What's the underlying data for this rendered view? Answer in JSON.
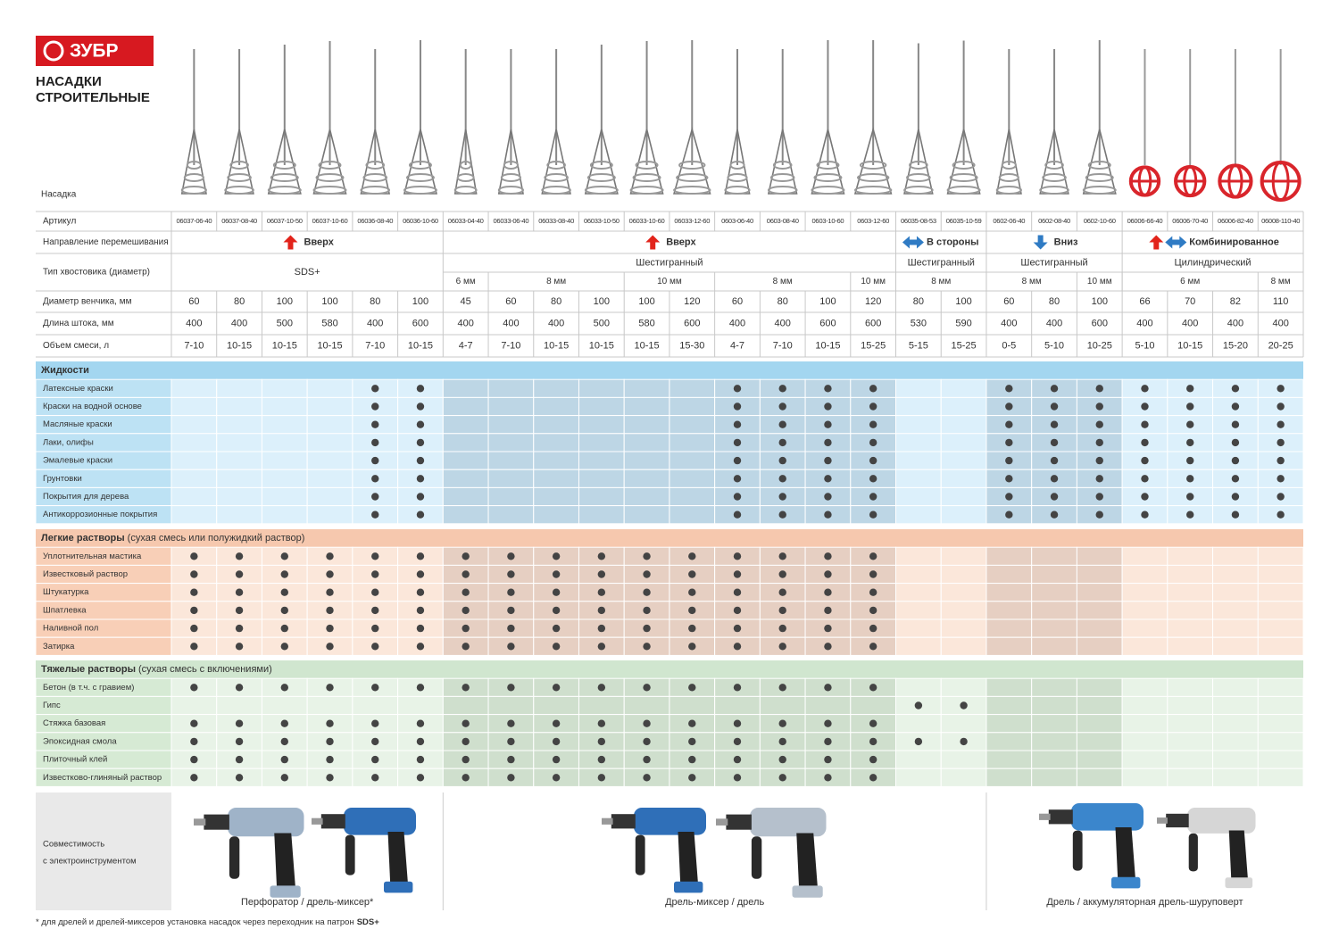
{
  "logo": "ЗУБР",
  "title": [
    "НАСАДКИ",
    "СТРОИТЕЛЬНЫЕ"
  ],
  "nozzle_label": "Насадка",
  "row_labels": {
    "article": "Артикул",
    "direction": "Направление перемешивания",
    "shank": "Тип хвостовика (диаметр)",
    "diameter": "Диаметр венчика, мм",
    "length": "Длина штока, мм",
    "volume": "Объем смеси, л"
  },
  "groups": [
    {
      "direction": "Вверх",
      "arrows": [
        "up"
      ],
      "shank": "SDS+",
      "columns": [
        {
          "article": "06037-06-40",
          "diameter": 60,
          "length": 400,
          "volume": "7-10"
        },
        {
          "article": "06037-08-40",
          "diameter": 80,
          "length": 400,
          "volume": "10-15"
        },
        {
          "article": "06037-10-50",
          "diameter": 100,
          "length": 500,
          "volume": "10-15"
        },
        {
          "article": "06037-10-60",
          "diameter": 100,
          "length": 580,
          "volume": "10-15"
        },
        {
          "article": "06036-08-40",
          "diameter": 80,
          "length": 400,
          "volume": "7-10"
        },
        {
          "article": "06036-10-60",
          "diameter": 100,
          "length": 600,
          "volume": "10-15"
        }
      ]
    },
    {
      "direction": "Вверх",
      "arrows": [
        "up"
      ],
      "shank": "Шестигранный",
      "sizes": [
        {
          "label": "6 мм",
          "columns": [
            {
              "article": "06033-04-40",
              "diameter": 45,
              "length": 400,
              "volume": "4-7"
            }
          ]
        },
        {
          "label": "8 мм",
          "columns": [
            {
              "article": "06033-06-40",
              "diameter": 60,
              "length": 400,
              "volume": "7-10"
            },
            {
              "article": "06033-08-40",
              "diameter": 80,
              "length": 400,
              "volume": "10-15"
            },
            {
              "article": "06033-10-50",
              "diameter": 100,
              "length": 500,
              "volume": "10-15"
            }
          ]
        },
        {
          "label": "10 мм",
          "columns": [
            {
              "article": "06033-10-60",
              "diameter": 100,
              "length": 580,
              "volume": "10-15"
            },
            {
              "article": "06033-12-60",
              "diameter": 120,
              "length": 600,
              "volume": "15-30"
            }
          ]
        },
        {
          "label": "8 мм",
          "columns": [
            {
              "article": "0603-06-40",
              "diameter": 60,
              "length": 400,
              "volume": "4-7"
            },
            {
              "article": "0603-08-40",
              "diameter": 80,
              "length": 400,
              "volume": "7-10"
            },
            {
              "article": "0603-10-60",
              "diameter": 100,
              "length": 600,
              "volume": "10-15"
            }
          ]
        },
        {
          "label": "10 мм",
          "columns": [
            {
              "article": "0603-12-60",
              "diameter": 120,
              "length": 600,
              "volume": "15-25"
            }
          ]
        }
      ]
    },
    {
      "direction": "В стороны",
      "arrows": [
        "sideways"
      ],
      "shank": "Шестигранный",
      "sizes": [
        {
          "label": "8 мм",
          "columns": [
            {
              "article": "06035-08-53",
              "diameter": 80,
              "length": 530,
              "volume": "5-15"
            },
            {
              "article": "06035-10-59",
              "diameter": 100,
              "length": 590,
              "volume": "15-25"
            }
          ]
        }
      ]
    },
    {
      "direction": "Вниз",
      "arrows": [
        "down"
      ],
      "shank": "Шестигранный",
      "sizes": [
        {
          "label": "8 мм",
          "columns": [
            {
              "article": "0602-06-40",
              "diameter": 60,
              "length": 400,
              "volume": "0-5"
            },
            {
              "article": "0602-08-40",
              "diameter": 80,
              "length": 400,
              "volume": "5-10"
            }
          ]
        },
        {
          "label": "10 мм",
          "columns": [
            {
              "article": "0602-10-60",
              "diameter": 100,
              "length": 600,
              "volume": "10-25"
            }
          ]
        }
      ]
    },
    {
      "direction": "Комбинированное",
      "arrows": [
        "up",
        "sideways"
      ],
      "shank": "Цилиндрический",
      "sizes": [
        {
          "label": "6 мм",
          "columns": [
            {
              "article": "06006-66-40",
              "diameter": 66,
              "length": 400,
              "volume": "5-10"
            },
            {
              "article": "06006-70-40",
              "diameter": 70,
              "length": 400,
              "volume": "10-15"
            },
            {
              "article": "06006-82-40",
              "diameter": 82,
              "length": 400,
              "volume": "15-20"
            }
          ]
        },
        {
          "label": "8 мм",
          "columns": [
            {
              "article": "06008-110-40",
              "diameter": 110,
              "length": 400,
              "volume": "20-25"
            }
          ]
        }
      ]
    }
  ],
  "sections": [
    {
      "title": "Жидкости",
      "colors": {
        "header": "#a3d6f0",
        "light": "#dcf0fb",
        "dark": "#bdd6e5",
        "label": "#bde2f4"
      },
      "rows": [
        {
          "label": "Латексные краски",
          "dots": [
            false,
            false,
            false,
            false,
            true,
            true,
            false,
            false,
            false,
            false,
            false,
            false,
            true,
            true,
            true,
            true,
            false,
            false,
            true,
            true,
            true,
            true,
            true,
            true,
            true
          ]
        },
        {
          "label": "Краски на водной основе",
          "dots": [
            false,
            false,
            false,
            false,
            true,
            true,
            false,
            false,
            false,
            false,
            false,
            false,
            true,
            true,
            true,
            true,
            false,
            false,
            true,
            true,
            true,
            true,
            true,
            true,
            true
          ]
        },
        {
          "label": "Масляные краски",
          "dots": [
            false,
            false,
            false,
            false,
            true,
            true,
            false,
            false,
            false,
            false,
            false,
            false,
            true,
            true,
            true,
            true,
            false,
            false,
            true,
            true,
            true,
            true,
            true,
            true,
            true
          ]
        },
        {
          "label": "Лаки, олифы",
          "dots": [
            false,
            false,
            false,
            false,
            true,
            true,
            false,
            false,
            false,
            false,
            false,
            false,
            true,
            true,
            true,
            true,
            false,
            false,
            true,
            true,
            true,
            true,
            true,
            true,
            true
          ]
        },
        {
          "label": "Эмалевые краски",
          "dots": [
            false,
            false,
            false,
            false,
            true,
            true,
            false,
            false,
            false,
            false,
            false,
            false,
            true,
            true,
            true,
            true,
            false,
            false,
            true,
            true,
            true,
            true,
            true,
            true,
            true
          ]
        },
        {
          "label": "Грунтовки",
          "dots": [
            false,
            false,
            false,
            false,
            true,
            true,
            false,
            false,
            false,
            false,
            false,
            false,
            true,
            true,
            true,
            true,
            false,
            false,
            true,
            true,
            true,
            true,
            true,
            true,
            true
          ]
        },
        {
          "label": "Покрытия для дерева",
          "dots": [
            false,
            false,
            false,
            false,
            true,
            true,
            false,
            false,
            false,
            false,
            false,
            false,
            true,
            true,
            true,
            true,
            false,
            false,
            true,
            true,
            true,
            true,
            true,
            true,
            true
          ]
        },
        {
          "label": "Антикоррозионные покрытия",
          "dots": [
            false,
            false,
            false,
            false,
            true,
            true,
            false,
            false,
            false,
            false,
            false,
            false,
            true,
            true,
            true,
            true,
            false,
            false,
            true,
            true,
            true,
            true,
            true,
            true,
            true
          ]
        }
      ]
    },
    {
      "title": "Легкие растворы",
      "subtitle": "(сухая смесь или полужидкий раствор)",
      "colors": {
        "header": "#f6c8ae",
        "light": "#fbe7da",
        "dark": "#e6cfc2",
        "label": "#f8cfb7"
      },
      "rows": [
        {
          "label": "Уплотнительная мастика",
          "dots": [
            true,
            true,
            true,
            true,
            true,
            true,
            true,
            true,
            true,
            true,
            true,
            true,
            true,
            true,
            true,
            true,
            false,
            false,
            false,
            false,
            false,
            false,
            false,
            false,
            false
          ]
        },
        {
          "label": "Известковый раствор",
          "dots": [
            true,
            true,
            true,
            true,
            true,
            true,
            true,
            true,
            true,
            true,
            true,
            true,
            true,
            true,
            true,
            true,
            false,
            false,
            false,
            false,
            false,
            false,
            false,
            false,
            false
          ]
        },
        {
          "label": "Штукатурка",
          "dots": [
            true,
            true,
            true,
            true,
            true,
            true,
            true,
            true,
            true,
            true,
            true,
            true,
            true,
            true,
            true,
            true,
            false,
            false,
            false,
            false,
            false,
            false,
            false,
            false,
            false
          ]
        },
        {
          "label": "Шпатлевка",
          "dots": [
            true,
            true,
            true,
            true,
            true,
            true,
            true,
            true,
            true,
            true,
            true,
            true,
            true,
            true,
            true,
            true,
            false,
            false,
            false,
            false,
            false,
            false,
            false,
            false,
            false
          ]
        },
        {
          "label": "Наливной пол",
          "dots": [
            true,
            true,
            true,
            true,
            true,
            true,
            true,
            true,
            true,
            true,
            true,
            true,
            true,
            true,
            true,
            true,
            false,
            false,
            false,
            false,
            false,
            false,
            false,
            false,
            false
          ]
        },
        {
          "label": "Затирка",
          "dots": [
            true,
            true,
            true,
            true,
            true,
            true,
            true,
            true,
            true,
            true,
            true,
            true,
            true,
            true,
            true,
            true,
            false,
            false,
            false,
            false,
            false,
            false,
            false,
            false,
            false
          ]
        }
      ]
    },
    {
      "title": "Тяжелые растворы",
      "subtitle": "(сухая смесь с включениями)",
      "colors": {
        "header": "#d0e6cf",
        "light": "#e8f3e7",
        "dark": "#cfdfcd",
        "label": "#d6ead4"
      },
      "rows": [
        {
          "label": "Бетон (в т.ч. с гравием)",
          "dots": [
            true,
            true,
            true,
            true,
            true,
            true,
            true,
            true,
            true,
            true,
            true,
            true,
            true,
            true,
            true,
            true,
            false,
            false,
            false,
            false,
            false,
            false,
            false,
            false,
            false
          ]
        },
        {
          "label": "Гипс",
          "dots": [
            false,
            false,
            false,
            false,
            false,
            false,
            false,
            false,
            false,
            false,
            false,
            false,
            false,
            false,
            false,
            false,
            true,
            true,
            false,
            false,
            false,
            false,
            false,
            false,
            false
          ]
        },
        {
          "label": "Стяжка базовая",
          "dots": [
            true,
            true,
            true,
            true,
            true,
            true,
            true,
            true,
            true,
            true,
            true,
            true,
            true,
            true,
            true,
            true,
            false,
            false,
            false,
            false,
            false,
            false,
            false,
            false,
            false
          ]
        },
        {
          "label": "Эпоксидная смола",
          "dots": [
            true,
            true,
            true,
            true,
            true,
            true,
            true,
            true,
            true,
            true,
            true,
            true,
            true,
            true,
            true,
            true,
            true,
            true,
            false,
            false,
            false,
            false,
            false,
            false,
            false
          ]
        },
        {
          "label": "Плиточный клей",
          "dots": [
            true,
            true,
            true,
            true,
            true,
            true,
            true,
            true,
            true,
            true,
            true,
            true,
            true,
            true,
            true,
            true,
            false,
            false,
            false,
            false,
            false,
            false,
            false,
            false,
            false
          ]
        },
        {
          "label": "Известково-глиняный раствор",
          "dots": [
            true,
            true,
            true,
            true,
            true,
            true,
            true,
            true,
            true,
            true,
            true,
            true,
            true,
            true,
            true,
            true,
            false,
            false,
            false,
            false,
            false,
            false,
            false,
            false,
            false
          ]
        }
      ]
    }
  ],
  "compatibility": {
    "label": [
      "Совместимость",
      "с электроинструментом"
    ],
    "tools": [
      "Перфоратор / дрель-миксер*",
      "Дрель-миксер / дрель",
      "Дрель / аккумуляторная дрель-шуруповерт"
    ]
  },
  "footnote": {
    "text": "* для дрелей и дрелей-миксеров установка насадок через переходник на патрон",
    "bold": "SDS+"
  }
}
